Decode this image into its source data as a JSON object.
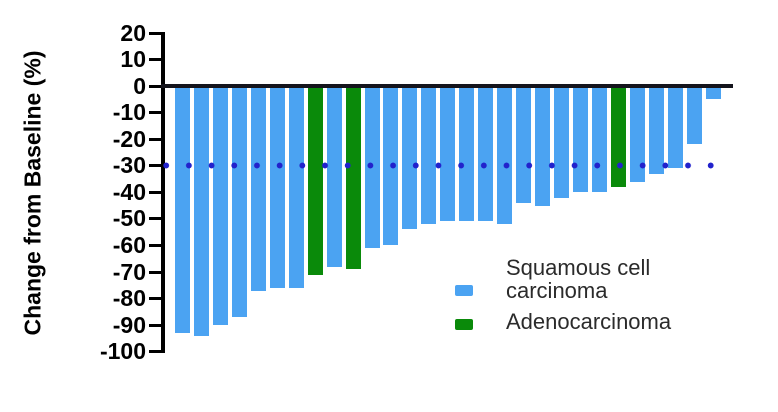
{
  "chart_data": {
    "type": "bar",
    "subtype": "waterfall",
    "title": "",
    "xlabel": "",
    "ylabel": "Change from Baseline (%)",
    "ylim": [
      -100,
      20
    ],
    "yticks": [
      20,
      10,
      0,
      -10,
      -20,
      -30,
      -40,
      -50,
      -60,
      -70,
      -80,
      -90,
      -100
    ],
    "grid": false,
    "baseline_y": 0,
    "reference_line": {
      "y": -30,
      "style": "dotted",
      "color": "#2222cc"
    },
    "legend": {
      "position": "inside-bottom-right",
      "items": [
        {
          "key": "scc",
          "label": "Squamous cell carcinoma",
          "label_lines": [
            "Squamous cell",
            "carcinoma"
          ],
          "color": "#4ba3f2"
        },
        {
          "key": "adeno",
          "label": "Adenocarcinoma",
          "label_lines": [
            "Adenocarcinoma"
          ],
          "color": "#0a8a0a"
        }
      ]
    },
    "bars": [
      {
        "value": -93,
        "group": "scc"
      },
      {
        "value": -94,
        "group": "scc"
      },
      {
        "value": -90,
        "group": "scc"
      },
      {
        "value": -87,
        "group": "scc"
      },
      {
        "value": -77,
        "group": "scc"
      },
      {
        "value": -76,
        "group": "scc"
      },
      {
        "value": -76,
        "group": "scc"
      },
      {
        "value": -71,
        "group": "adeno"
      },
      {
        "value": -68,
        "group": "scc"
      },
      {
        "value": -69,
        "group": "adeno"
      },
      {
        "value": -61,
        "group": "scc"
      },
      {
        "value": -60,
        "group": "scc"
      },
      {
        "value": -54,
        "group": "scc"
      },
      {
        "value": -52,
        "group": "scc"
      },
      {
        "value": -51,
        "group": "scc"
      },
      {
        "value": -51,
        "group": "scc"
      },
      {
        "value": -51,
        "group": "scc"
      },
      {
        "value": -52,
        "group": "scc"
      },
      {
        "value": -44,
        "group": "scc"
      },
      {
        "value": -45,
        "group": "scc"
      },
      {
        "value": -42,
        "group": "scc"
      },
      {
        "value": -40,
        "group": "scc"
      },
      {
        "value": -40,
        "group": "scc"
      },
      {
        "value": -38,
        "group": "adeno"
      },
      {
        "value": -36,
        "group": "scc"
      },
      {
        "value": -33,
        "group": "scc"
      },
      {
        "value": -31,
        "group": "scc"
      },
      {
        "value": -22,
        "group": "scc"
      },
      {
        "value": -5,
        "group": "scc"
      }
    ],
    "colors": {
      "scc": "#4ba3f2",
      "adeno": "#0a8a0a",
      "zero_line": "#14141c",
      "axis": "#000000",
      "dotted_line": "#2222cc",
      "legend_text": "#2b2b2b"
    }
  }
}
